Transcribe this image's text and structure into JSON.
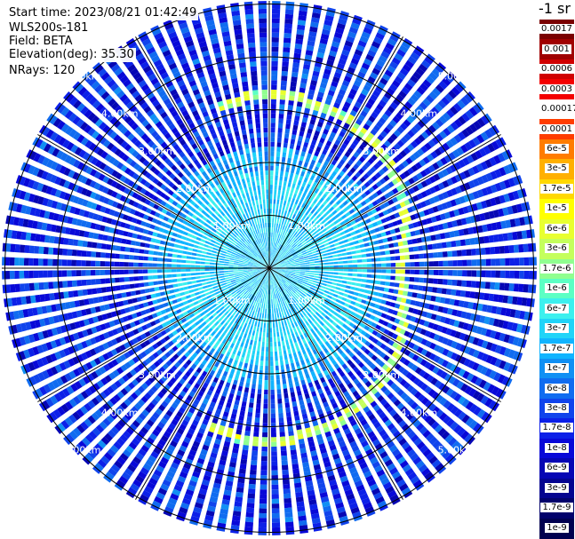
{
  "info": {
    "start_time": "Start time: 2023/08/21 01:42:49",
    "device": "WLS200s-181",
    "field": "Field: BETA",
    "elevation": "Elevation(deg): 35.30",
    "nrays": "NRays: 120"
  },
  "colorbar": {
    "unit": "-1 sr",
    "labels": [
      "0.0017",
      "0.001",
      "0.0006",
      "0.0003",
      "0.00017",
      "0.0001",
      "6e-5",
      "3e-5",
      "1.7e-5",
      "1e-5",
      "6e-6",
      "3e-6",
      "1.7e-6",
      "1e-6",
      "6e-7",
      "3e-7",
      "1.7e-7",
      "1e-7",
      "6e-8",
      "3e-8",
      "1.7e-8",
      "1e-8",
      "6e-9",
      "3e-9",
      "1.7e-9",
      "1e-9"
    ],
    "colors": [
      "#7a0000",
      "#a00000",
      "#d00000",
      "#f40000",
      "#ffffff",
      "#ff3c00",
      "#ff7c00",
      "#ffb000",
      "#ffd800",
      "#ffff00",
      "#e8ff30",
      "#c4ff5c",
      "#90ff90",
      "#5cffc4",
      "#3cf0ee",
      "#20d4f8",
      "#10b4ff",
      "#1090f4",
      "#106cf0",
      "#1044ec",
      "#0c20e8",
      "#0808d8",
      "#0606b4",
      "#040490",
      "#02026c",
      "#000050"
    ]
  },
  "chart_data": {
    "type": "heatmap",
    "projection": "polar-ppi",
    "field": "BETA",
    "elevation_deg": 35.3,
    "nrays": 120,
    "range_ring_labels": [
      "1.00km",
      "2.00km",
      "3.00km",
      "4.00km",
      "5.00km"
    ],
    "range_rings_km": [
      1,
      2,
      3,
      4,
      5
    ],
    "max_range_km": 5.3,
    "spoke_step_deg": 30,
    "colorscale": "log",
    "value_range": [
      1e-09,
      0.0017
    ],
    "features": [
      {
        "name": "elevated-return-arc",
        "range_km": [
          2.4,
          3.3
        ],
        "approx_value": 3e-06
      }
    ]
  }
}
